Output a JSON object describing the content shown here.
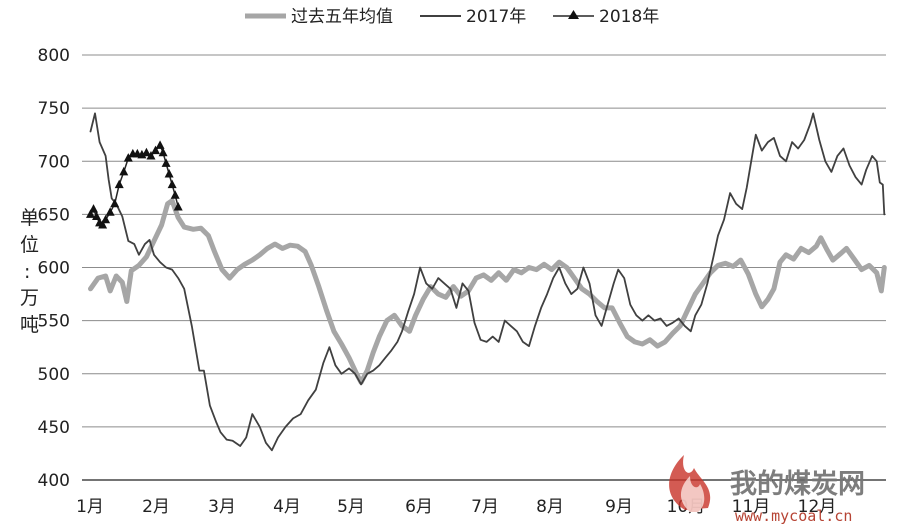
{
  "chart_data": {
    "type": "line",
    "title": "",
    "ylabel": "单位：万吨",
    "xlabel": "",
    "ylim": [
      400,
      800
    ],
    "yticks": [
      400,
      450,
      500,
      550,
      600,
      650,
      700,
      750,
      800
    ],
    "month_labels": [
      "1月",
      "2月",
      "3月",
      "4月",
      "5月",
      "6月",
      "7月",
      "8月",
      "9月",
      "10月",
      "11月",
      "12月"
    ],
    "x_unit": "week of year",
    "xlim": [
      0,
      52.5
    ],
    "grid": true,
    "legend_position": "top",
    "series": [
      {
        "name": "过去五年均值",
        "color": "#a6a6a6",
        "style": "thick",
        "points": [
          [
            0,
            580
          ],
          [
            0.5,
            590
          ],
          [
            1,
            592
          ],
          [
            1.3,
            578
          ],
          [
            1.7,
            592
          ],
          [
            2.1,
            586
          ],
          [
            2.4,
            568
          ],
          [
            2.7,
            597
          ],
          [
            3.2,
            602
          ],
          [
            3.7,
            610
          ],
          [
            4.2,
            625
          ],
          [
            4.7,
            640
          ],
          [
            5.1,
            660
          ],
          [
            5.4,
            663
          ],
          [
            5.8,
            647
          ],
          [
            6.2,
            638
          ],
          [
            6.8,
            636
          ],
          [
            7.3,
            637
          ],
          [
            7.8,
            630
          ],
          [
            8.2,
            615
          ],
          [
            8.7,
            598
          ],
          [
            9.2,
            590
          ],
          [
            9.7,
            598
          ],
          [
            10.2,
            603
          ],
          [
            10.7,
            607
          ],
          [
            11.2,
            612
          ],
          [
            11.7,
            618
          ],
          [
            12.2,
            622
          ],
          [
            12.7,
            618
          ],
          [
            13.2,
            621
          ],
          [
            13.7,
            620
          ],
          [
            14.2,
            615
          ],
          [
            14.6,
            602
          ],
          [
            15.1,
            582
          ],
          [
            15.6,
            560
          ],
          [
            16.1,
            540
          ],
          [
            16.6,
            528
          ],
          [
            17.1,
            515
          ],
          [
            17.6,
            500
          ],
          [
            17.9,
            492
          ],
          [
            18.3,
            503
          ],
          [
            18.7,
            520
          ],
          [
            19.1,
            535
          ],
          [
            19.6,
            550
          ],
          [
            20.1,
            555
          ],
          [
            20.6,
            545
          ],
          [
            21.1,
            540
          ],
          [
            21.5,
            555
          ],
          [
            22,
            570
          ],
          [
            22.5,
            582
          ],
          [
            23,
            575
          ],
          [
            23.5,
            572
          ],
          [
            24,
            582
          ],
          [
            24.5,
            573
          ],
          [
            25,
            578
          ],
          [
            25.5,
            590
          ],
          [
            26,
            593
          ],
          [
            26.5,
            588
          ],
          [
            27,
            595
          ],
          [
            27.5,
            588
          ],
          [
            28,
            598
          ],
          [
            28.5,
            595
          ],
          [
            29,
            600
          ],
          [
            29.5,
            598
          ],
          [
            30,
            603
          ],
          [
            30.5,
            598
          ],
          [
            31,
            605
          ],
          [
            31.5,
            600
          ],
          [
            32,
            590
          ],
          [
            32.5,
            580
          ],
          [
            33,
            575
          ],
          [
            33.5,
            568
          ],
          [
            34,
            562
          ],
          [
            34.5,
            562
          ],
          [
            35,
            548
          ],
          [
            35.5,
            535
          ],
          [
            36,
            530
          ],
          [
            36.5,
            528
          ],
          [
            37,
            532
          ],
          [
            37.5,
            526
          ],
          [
            38,
            530
          ],
          [
            38.5,
            538
          ],
          [
            39,
            545
          ],
          [
            39.5,
            560
          ],
          [
            40,
            575
          ],
          [
            40.5,
            585
          ],
          [
            41,
            595
          ],
          [
            41.5,
            602
          ],
          [
            42,
            604
          ],
          [
            42.5,
            601
          ],
          [
            43,
            607
          ],
          [
            43.5,
            594
          ],
          [
            44,
            575
          ],
          [
            44.4,
            563
          ],
          [
            44.8,
            570
          ],
          [
            45.2,
            580
          ],
          [
            45.6,
            605
          ],
          [
            46,
            612
          ],
          [
            46.5,
            608
          ],
          [
            47,
            618
          ],
          [
            47.5,
            614
          ],
          [
            48,
            620
          ],
          [
            48.3,
            628
          ],
          [
            48.7,
            617
          ],
          [
            49.1,
            607
          ],
          [
            49.6,
            613
          ],
          [
            50,
            618
          ],
          [
            50.5,
            608
          ],
          [
            51,
            598
          ],
          [
            51.5,
            602
          ],
          [
            52,
            595
          ],
          [
            52.3,
            578
          ],
          [
            52.5,
            600
          ]
        ]
      },
      {
        "name": "2017年",
        "color": "#404040",
        "style": "thin",
        "points": [
          [
            0,
            728
          ],
          [
            0.3,
            745
          ],
          [
            0.6,
            718
          ],
          [
            1,
            705
          ],
          [
            1.2,
            683
          ],
          [
            1.4,
            665
          ],
          [
            1.7,
            660
          ],
          [
            2.1,
            648
          ],
          [
            2.5,
            625
          ],
          [
            2.9,
            622
          ],
          [
            3.2,
            612
          ],
          [
            3.6,
            622
          ],
          [
            3.9,
            626
          ],
          [
            4.2,
            612
          ],
          [
            4.6,
            605
          ],
          [
            5,
            600
          ],
          [
            5.4,
            598
          ],
          [
            5.8,
            590
          ],
          [
            6.2,
            580
          ],
          [
            6.7,
            545
          ],
          [
            7.2,
            503
          ],
          [
            7.5,
            503
          ],
          [
            7.9,
            470
          ],
          [
            8.3,
            455
          ],
          [
            8.6,
            445
          ],
          [
            9,
            438
          ],
          [
            9.4,
            437
          ],
          [
            9.9,
            432
          ],
          [
            10.3,
            440
          ],
          [
            10.7,
            462
          ],
          [
            11.2,
            450
          ],
          [
            11.6,
            435
          ],
          [
            12,
            428
          ],
          [
            12.4,
            440
          ],
          [
            12.9,
            450
          ],
          [
            13.4,
            458
          ],
          [
            13.9,
            462
          ],
          [
            14.4,
            475
          ],
          [
            14.9,
            485
          ],
          [
            15.4,
            510
          ],
          [
            15.8,
            525
          ],
          [
            16.2,
            508
          ],
          [
            16.6,
            500
          ],
          [
            17.1,
            505
          ],
          [
            17.5,
            500
          ],
          [
            17.9,
            490
          ],
          [
            18.3,
            500
          ],
          [
            18.7,
            503
          ],
          [
            19.1,
            508
          ],
          [
            19.5,
            515
          ],
          [
            19.9,
            522
          ],
          [
            20.3,
            530
          ],
          [
            20.6,
            540
          ],
          [
            21,
            558
          ],
          [
            21.4,
            575
          ],
          [
            21.8,
            600
          ],
          [
            22.2,
            585
          ],
          [
            22.6,
            580
          ],
          [
            23,
            590
          ],
          [
            23.4,
            585
          ],
          [
            23.8,
            580
          ],
          [
            24.2,
            562
          ],
          [
            24.6,
            585
          ],
          [
            25,
            578
          ],
          [
            25.4,
            548
          ],
          [
            25.8,
            532
          ],
          [
            26.2,
            530
          ],
          [
            26.6,
            535
          ],
          [
            27,
            530
          ],
          [
            27.4,
            550
          ],
          [
            27.8,
            545
          ],
          [
            28.2,
            540
          ],
          [
            28.6,
            530
          ],
          [
            29,
            526
          ],
          [
            29.4,
            545
          ],
          [
            29.8,
            562
          ],
          [
            30.2,
            575
          ],
          [
            30.6,
            590
          ],
          [
            31,
            600
          ],
          [
            31.4,
            585
          ],
          [
            31.8,
            575
          ],
          [
            32.2,
            580
          ],
          [
            32.6,
            600
          ],
          [
            33,
            585
          ],
          [
            33.4,
            555
          ],
          [
            33.8,
            545
          ],
          [
            34.2,
            565
          ],
          [
            34.6,
            585
          ],
          [
            34.9,
            598
          ],
          [
            35.3,
            590
          ],
          [
            35.7,
            565
          ],
          [
            36.1,
            555
          ],
          [
            36.5,
            550
          ],
          [
            36.9,
            555
          ],
          [
            37.3,
            550
          ],
          [
            37.7,
            552
          ],
          [
            38.1,
            545
          ],
          [
            38.5,
            548
          ],
          [
            38.9,
            552
          ],
          [
            39.3,
            545
          ],
          [
            39.7,
            540
          ],
          [
            40,
            555
          ],
          [
            40.4,
            565
          ],
          [
            40.8,
            585
          ],
          [
            41.2,
            610
          ],
          [
            41.5,
            630
          ],
          [
            41.9,
            645
          ],
          [
            42.3,
            670
          ],
          [
            42.7,
            660
          ],
          [
            43.1,
            655
          ],
          [
            43.4,
            675
          ],
          [
            43.7,
            700
          ],
          [
            44,
            725
          ],
          [
            44.4,
            710
          ],
          [
            44.8,
            718
          ],
          [
            45.2,
            722
          ],
          [
            45.6,
            705
          ],
          [
            46,
            700
          ],
          [
            46.4,
            718
          ],
          [
            46.8,
            712
          ],
          [
            47.2,
            720
          ],
          [
            47.6,
            735
          ],
          [
            47.8,
            745
          ],
          [
            48.2,
            720
          ],
          [
            48.6,
            700
          ],
          [
            49,
            690
          ],
          [
            49.4,
            705
          ],
          [
            49.8,
            712
          ],
          [
            50.2,
            696
          ],
          [
            50.6,
            685
          ],
          [
            51,
            678
          ],
          [
            51.3,
            692
          ],
          [
            51.7,
            705
          ],
          [
            52,
            700
          ],
          [
            52.2,
            680
          ],
          [
            52.4,
            678
          ],
          [
            52.5,
            650
          ]
        ]
      },
      {
        "name": "2018年",
        "color": "#262626",
        "style": "thin-triangle",
        "points": [
          [
            0,
            650
          ],
          [
            0.2,
            655
          ],
          [
            0.4,
            648
          ],
          [
            0.6,
            642
          ],
          [
            0.8,
            640
          ],
          [
            1,
            645
          ],
          [
            1.3,
            652
          ],
          [
            1.6,
            660
          ],
          [
            1.9,
            678
          ],
          [
            2.2,
            690
          ],
          [
            2.5,
            703
          ],
          [
            2.8,
            707
          ],
          [
            3.1,
            707
          ],
          [
            3.4,
            706
          ],
          [
            3.7,
            708
          ],
          [
            4,
            705
          ],
          [
            4.3,
            710
          ],
          [
            4.6,
            715
          ],
          [
            4.8,
            708
          ],
          [
            5,
            698
          ],
          [
            5.2,
            688
          ],
          [
            5.4,
            678
          ],
          [
            5.6,
            668
          ],
          [
            5.8,
            657
          ]
        ]
      }
    ]
  },
  "legend": {
    "items": [
      "过去五年均值",
      "2017年",
      "2018年"
    ]
  },
  "watermark": {
    "title": "我的煤炭网",
    "url": "www.mycoal.cn"
  },
  "colors": {
    "grid": "#8c8c8c",
    "axis": "#222222",
    "flame_outer": "#c8342a",
    "flame_inner": "#e8a19a"
  }
}
